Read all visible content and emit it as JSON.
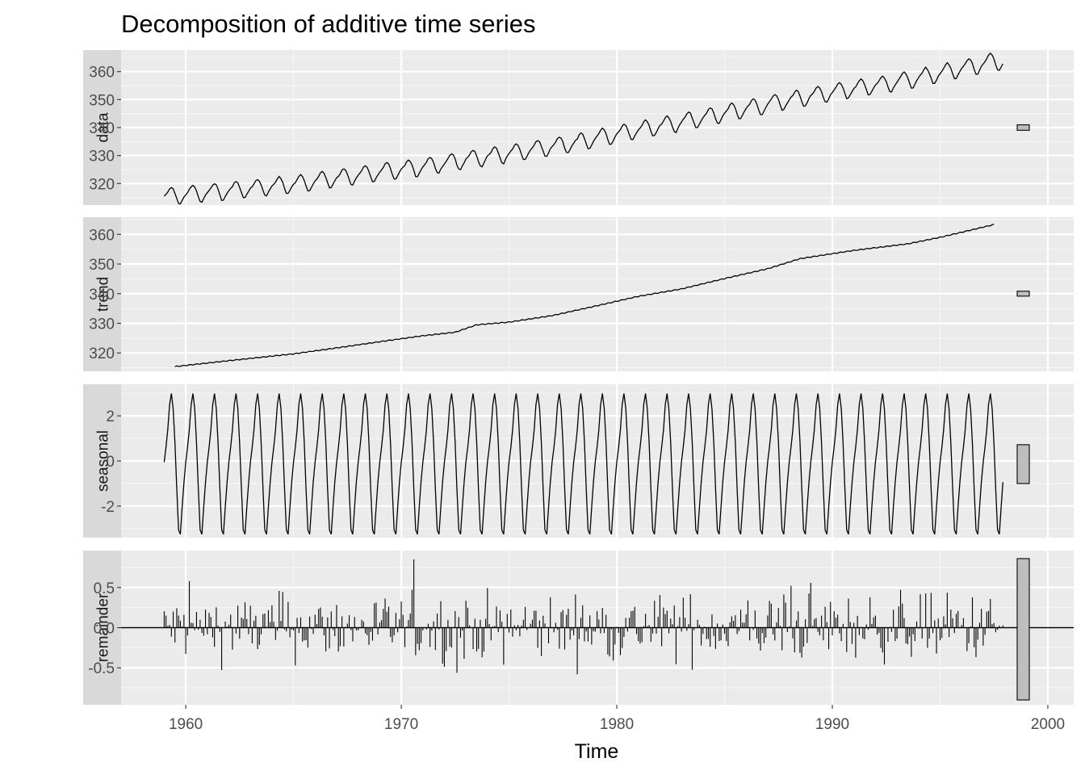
{
  "colors": {
    "panel_bg": "#ebebeb",
    "strip_bg": "#d9d9d9",
    "grid_major": "#ffffff",
    "grid_minor": "#f5f5f5",
    "line": "#000000",
    "range_bar_fill": "#bebebe",
    "tick_text": "#4d4d4d"
  },
  "chart_data": {
    "type": "line",
    "title": "Decomposition of additive time series",
    "xlabel": "Time",
    "xlim": [
      1957,
      2001.2
    ],
    "x_ticks": [
      1960,
      1970,
      1980,
      1990,
      2000
    ],
    "x_tick_labels": [
      "1960",
      "1970",
      "1980",
      "1990",
      "2000"
    ],
    "grid": true,
    "series_start": 1959.0,
    "series_end": 1997.9167,
    "frequency": 12,
    "panels": [
      {
        "name": "data",
        "ylim": [
          312.3,
          367.7
        ],
        "y_ticks": [
          320,
          330,
          340,
          350,
          360
        ],
        "y_tick_labels": [
          "320",
          "330",
          "340",
          "350",
          "360"
        ],
        "range_bar": [
          339.03,
          340.97
        ],
        "trend_knots": [
          [
            1959.0,
            315.4
          ],
          [
            1962.0,
            317.5
          ],
          [
            1965.0,
            319.8
          ],
          [
            1967.0,
            322.0
          ],
          [
            1969.0,
            324.1
          ],
          [
            1971.0,
            326.0
          ],
          [
            1973.0,
            328.6
          ],
          [
            1975.0,
            330.8
          ],
          [
            1978.0,
            334.5
          ],
          [
            1980.0,
            337.8
          ],
          [
            1983.0,
            342.0
          ],
          [
            1985.0,
            345.2
          ],
          [
            1988.0,
            349.9
          ],
          [
            1991.0,
            354.0
          ],
          [
            1993.0,
            356.3
          ],
          [
            1995.0,
            359.4
          ],
          [
            1997.5,
            363.7
          ]
        ],
        "seasonal_amplitude": 3.1
      },
      {
        "name": "trend",
        "ylim": [
          313.8,
          365.8
        ],
        "y_ticks": [
          320,
          330,
          340,
          350,
          360
        ],
        "y_tick_labels": [
          "320",
          "330",
          "340",
          "350",
          "360"
        ],
        "range_bar": [
          339.17,
          340.83
        ],
        "trend_knots": [
          [
            1959.5,
            315.4
          ],
          [
            1962.0,
            317.4
          ],
          [
            1965.0,
            319.7
          ],
          [
            1967.0,
            321.7
          ],
          [
            1969.0,
            323.8
          ],
          [
            1971.0,
            325.8
          ],
          [
            1972.5,
            327.0
          ],
          [
            1973.5,
            329.5
          ],
          [
            1975.0,
            330.4
          ],
          [
            1977.0,
            332.6
          ],
          [
            1979.0,
            335.8
          ],
          [
            1981.0,
            339.1
          ],
          [
            1983.0,
            341.6
          ],
          [
            1985.0,
            345.1
          ],
          [
            1987.0,
            348.4
          ],
          [
            1988.5,
            351.8
          ],
          [
            1991.0,
            354.6
          ],
          [
            1993.5,
            356.8
          ],
          [
            1995.0,
            359.0
          ],
          [
            1997.5,
            363.3
          ]
        ]
      },
      {
        "name": "seasonal",
        "ylim": [
          -3.4,
          3.4
        ],
        "y_ticks": [
          -2,
          0,
          2
        ],
        "y_tick_labels": [
          "-2",
          "0",
          "2"
        ],
        "range_bar": [
          -1.0,
          0.72
        ],
        "monthly_pattern": [
          -0.05,
          0.61,
          1.38,
          2.5,
          2.99,
          2.32,
          0.81,
          -1.25,
          -3.06,
          -3.25,
          -2.06,
          -0.94
        ]
      },
      {
        "name": "remainder",
        "ylim": [
          -0.96,
          0.96
        ],
        "y_ticks": [
          -0.5,
          0.0,
          0.5
        ],
        "y_tick_labels": [
          "-0.5",
          "0.0",
          "0.5"
        ],
        "range_bar": [
          -0.9,
          0.86
        ],
        "baseline": 0.0
      }
    ]
  }
}
